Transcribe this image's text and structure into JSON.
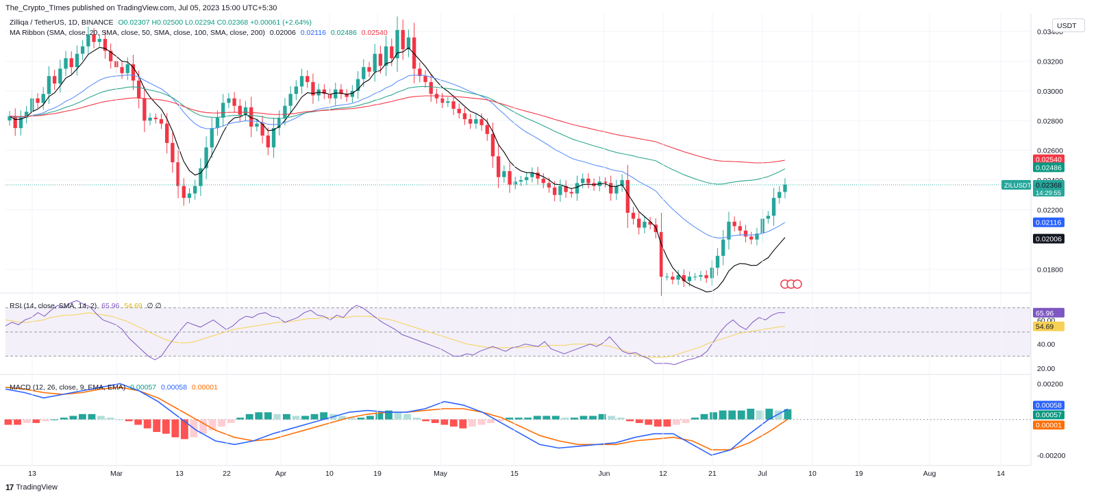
{
  "header": {
    "published": "The_Crypto_TImes published on TradingView.com, Jul 05, 2023 15:00 UTC+5:30"
  },
  "main_legend": {
    "symbol": "Zilliqa / TetherUS, 1D, BINANCE",
    "ohlc": "O0.02307 H0.02500 L0.02294 C0.02368 +0.00061 (+2.64%)",
    "ma_label": "MA Ribbon (SMA, close, 20, SMA, close, 50, SMA, close, 100, SMA, close, 200)",
    "ma_values": [
      "0.02006",
      "0.02116",
      "0.02486",
      "0.02540"
    ]
  },
  "rsi_legend": {
    "label": "RSI (14, close, SMA, 14, 2)",
    "value": "65.96",
    "sma": "54.69",
    "extra": "∅ ∅"
  },
  "macd_legend": {
    "label": "MACD (12, 26, close, 9, EMA, EMA)",
    "hist": "0.00057",
    "macd": "0.00058",
    "signal": "0.00001"
  },
  "currency_button": "USDT",
  "footer": {
    "brand": "TradingView"
  },
  "colors": {
    "up": "#26a69a",
    "down": "#f23645",
    "ma20": "#000000",
    "ma50": "#5b8ff9",
    "ma100": "#2ca58d",
    "ma200": "#f23645",
    "rsi": "#7e57c2",
    "rsi_sma": "#f7d154",
    "macd": "#2962ff",
    "signal": "#ff6d00"
  },
  "chart_data": [
    {
      "type": "candlestick",
      "title": "Zilliqa / TetherUS, 1D, BINANCE",
      "x_tick_labels": [
        "13",
        "Mar",
        "13",
        "22",
        "Apr",
        "10",
        "19",
        "May",
        "15",
        "Jun",
        "12",
        "21",
        "Jul",
        "10",
        "19",
        "Aug",
        "14"
      ],
      "y_tick_labels": [
        "0.03400",
        "0.03200",
        "0.03000",
        "0.02800",
        "0.02600",
        "0.02400",
        "0.02200",
        "0.01800"
      ],
      "ylim": [
        0.0164,
        0.0352
      ],
      "close_series": [
        0.0283,
        0.0275,
        0.0282,
        0.0286,
        0.0295,
        0.0292,
        0.0298,
        0.031,
        0.0305,
        0.0315,
        0.0322,
        0.0316,
        0.0325,
        0.033,
        0.0338,
        0.0333,
        0.0335,
        0.0327,
        0.032,
        0.0316,
        0.0312,
        0.0318,
        0.0307,
        0.0295,
        0.028,
        0.0282,
        0.0281,
        0.0278,
        0.0265,
        0.0252,
        0.0236,
        0.0228,
        0.0231,
        0.0236,
        0.0248,
        0.0262,
        0.0275,
        0.0282,
        0.0292,
        0.0295,
        0.029,
        0.0284,
        0.0289,
        0.0276,
        0.0278,
        0.027,
        0.0262,
        0.0275,
        0.0282,
        0.029,
        0.0298,
        0.0303,
        0.031,
        0.0306,
        0.0297,
        0.0301,
        0.0298,
        0.0295,
        0.0301,
        0.0298,
        0.0296,
        0.03,
        0.0308,
        0.0316,
        0.0313,
        0.0325,
        0.0317,
        0.033,
        0.0322,
        0.0341,
        0.0328,
        0.0336,
        0.0315,
        0.031,
        0.0306,
        0.0298,
        0.0295,
        0.0292,
        0.0293,
        0.0288,
        0.0285,
        0.0281,
        0.0278,
        0.0281,
        0.0277,
        0.0271,
        0.0256,
        0.0242,
        0.0246,
        0.0237,
        0.0239,
        0.024,
        0.0242,
        0.0245,
        0.0241,
        0.0238,
        0.0235,
        0.023,
        0.0236,
        0.0232,
        0.0231,
        0.0238,
        0.0241,
        0.0238,
        0.0236,
        0.0239,
        0.0238,
        0.0231,
        0.0236,
        0.024,
        0.0218,
        0.0214,
        0.0208,
        0.0212,
        0.021,
        0.0205,
        0.0175,
        0.0175,
        0.0173,
        0.0176,
        0.0172,
        0.0175,
        0.0175,
        0.0176,
        0.0174,
        0.0181,
        0.0189,
        0.02,
        0.0212,
        0.0209,
        0.0206,
        0.0202,
        0.02,
        0.0204,
        0.0214,
        0.0216,
        0.0228,
        0.0232,
        0.0237
      ],
      "moving_averages": [
        {
          "name": "MA 20",
          "value": 0.02006
        },
        {
          "name": "MA 50",
          "value": 0.02116
        },
        {
          "name": "MA 100",
          "value": 0.02486
        },
        {
          "name": "MA 200",
          "value": 0.0254
        }
      ],
      "last_price": 0.02368,
      "price_labels": {
        "symbol": "ZILUSDT",
        "last": "0.02368",
        "countdown": "14:29:55",
        "ma200": "0.02540",
        "ma100": "0.02486",
        "ma50": "0.02116",
        "ma20": "0.02006"
      }
    },
    {
      "type": "line",
      "title": "RSI (14, close, SMA, 14, 2)",
      "y_tick_labels": [
        "60.00",
        "40.00",
        "20.00"
      ],
      "ylim": [
        16,
        80
      ],
      "bands": [
        70,
        50,
        30
      ],
      "series": [
        {
          "name": "RSI",
          "values": [
            55,
            58,
            56,
            60,
            62,
            66,
            63,
            68,
            72,
            70,
            74,
            76,
            73,
            71,
            65,
            60,
            58,
            56,
            52,
            45,
            40,
            35,
            30,
            27,
            30,
            38,
            45,
            52,
            58,
            56,
            54,
            57,
            60,
            56,
            52,
            55,
            60,
            63,
            62,
            65,
            66,
            63,
            62,
            58,
            60,
            62,
            66,
            68,
            64,
            63,
            60,
            64,
            62,
            68,
            72,
            70,
            66,
            62,
            58,
            55,
            52,
            48,
            46,
            44,
            42,
            40,
            38,
            36,
            33,
            30,
            30,
            32,
            31,
            34,
            36,
            38,
            36,
            34,
            37,
            38,
            40,
            39,
            38,
            42,
            36,
            34,
            32,
            34,
            36,
            38,
            40,
            38,
            41,
            46,
            40,
            34,
            32,
            33,
            30,
            28,
            24,
            24,
            24,
            23,
            25,
            27,
            28,
            30,
            34,
            42,
            50,
            56,
            60,
            55,
            52,
            58,
            62,
            60,
            64,
            66,
            65.96
          ]
        },
        {
          "name": "SMA",
          "values": [
            60,
            59,
            58,
            58,
            59,
            60,
            62,
            63,
            64,
            64,
            65,
            66,
            65,
            64,
            63,
            61,
            59,
            56,
            53,
            50,
            47,
            44,
            42,
            41,
            41,
            42,
            44,
            46,
            48,
            50,
            52,
            53,
            54,
            55,
            56,
            57,
            58,
            58,
            59,
            60,
            61,
            61,
            62,
            62,
            62,
            62,
            63,
            63,
            63,
            62,
            61,
            60,
            58,
            56,
            54,
            52,
            50,
            48,
            46,
            44,
            42,
            40,
            39,
            38,
            37,
            37,
            37,
            37,
            37,
            38,
            38,
            38,
            39,
            39,
            39,
            40,
            40,
            40,
            40,
            39,
            38,
            36,
            34,
            32,
            30,
            29,
            29,
            29,
            30,
            32,
            34,
            36,
            38,
            41,
            43,
            45,
            47,
            49,
            50,
            51,
            52,
            53,
            54,
            54.69
          ]
        }
      ]
    },
    {
      "type": "bar",
      "title": "MACD (12, 26, close, 9, EMA, EMA)",
      "y_tick_labels": [
        "0.00200",
        "-0.00200"
      ],
      "ylim": [
        -0.0025,
        0.0024
      ],
      "series": [
        {
          "name": "Histogram",
          "values": [
            -0.0003,
            -0.0003,
            -0.0002,
            -0.0002,
            -0.0001,
            0.0,
            0.0001,
            0.0002,
            0.0003,
            0.0003,
            0.0002,
            0.0001,
            0.0,
            -0.0001,
            -0.0003,
            -0.0005,
            -0.0007,
            -0.0008,
            -0.001,
            -0.0011,
            -0.001,
            -0.0008,
            -0.0006,
            -0.0004,
            -0.0002,
            0.0001,
            0.0003,
            0.0004,
            0.0004,
            0.0003,
            0.0003,
            0.0002,
            0.0002,
            0.0003,
            0.0004,
            0.0003,
            0.0002,
            0.0001,
            0.0001,
            0.0002,
            0.0004,
            0.0005,
            0.0004,
            0.0003,
            0.0001,
            -0.0001,
            -0.0002,
            -0.0003,
            -0.0004,
            -0.0005,
            -0.0004,
            -0.0003,
            -0.0002,
            -0.0001,
            0.0001,
            0.0001,
            0.0001,
            0.0002,
            0.0002,
            0.0002,
            0.0001,
            0.0001,
            0.0002,
            0.0002,
            0.0003,
            0.0002,
            0.0001,
            -0.0001,
            -0.0002,
            -0.0003,
            -0.0004,
            -0.0004,
            -0.0003,
            -0.0002,
            0.0001,
            0.0003,
            0.0004,
            0.0005,
            0.0005,
            0.0005,
            0.0006,
            0.0005,
            0.0006,
            0.0005,
            0.00057
          ]
        },
        {
          "name": "MACD",
          "values": [
            0.0017,
            0.0015,
            0.0012,
            0.0014,
            0.0016,
            0.0018,
            0.002,
            0.0016,
            0.001,
            0.0002,
            -0.0006,
            -0.0012,
            -0.0014,
            -0.0012,
            -0.0008,
            -0.0005,
            -0.0002,
            0.0001,
            0.0004,
            0.0005,
            0.0004,
            0.0004,
            0.0006,
            0.001,
            0.0008,
            0.0004,
            -0.0002,
            -0.0008,
            -0.0014,
            -0.0016,
            -0.0015,
            -0.0014,
            -0.0013,
            -0.001,
            -0.0008,
            -0.0008,
            -0.0014,
            -0.002,
            -0.0017,
            -0.0008,
            0.0,
            0.00058
          ]
        },
        {
          "name": "Signal",
          "values": [
            0.0018,
            0.0017,
            0.0015,
            0.0014,
            0.0015,
            0.0017,
            0.0018,
            0.0016,
            0.0012,
            0.0006,
            0.0,
            -0.0006,
            -0.001,
            -0.0012,
            -0.0011,
            -0.0008,
            -0.0005,
            -0.0002,
            0.0001,
            0.0003,
            0.0004,
            0.0004,
            0.0005,
            0.0006,
            0.0006,
            0.0004,
            0.0001,
            -0.0004,
            -0.0009,
            -0.0012,
            -0.0014,
            -0.0014,
            -0.0014,
            -0.0012,
            -0.0011,
            -0.001,
            -0.0012,
            -0.0017,
            -0.0017,
            -0.0013,
            -0.0007,
            1e-05
          ]
        }
      ]
    }
  ]
}
